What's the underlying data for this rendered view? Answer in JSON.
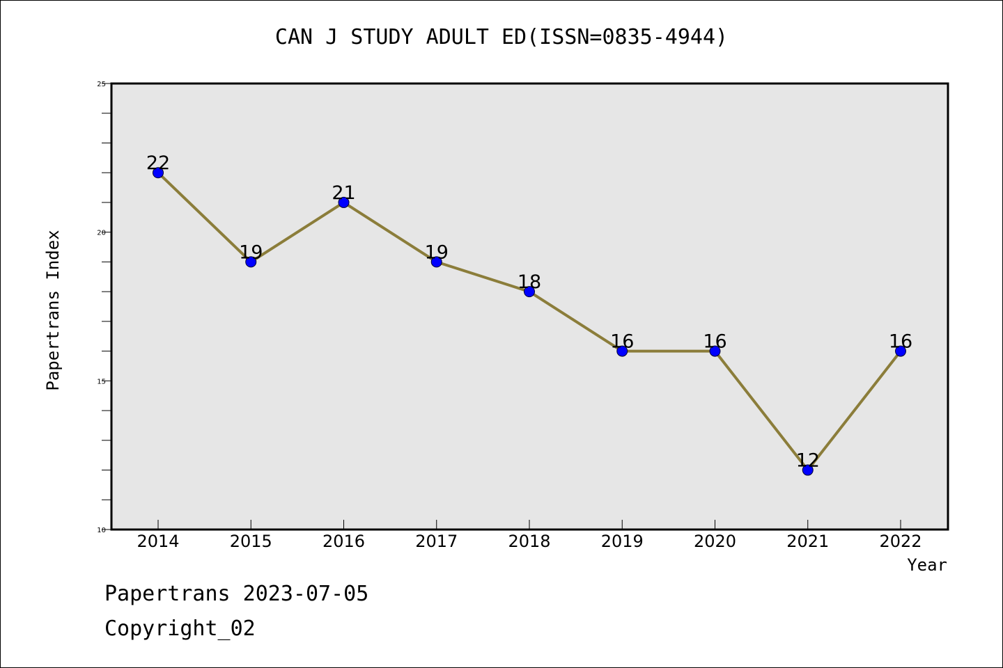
{
  "chart_data": {
    "type": "line",
    "title": "CAN J STUDY ADULT ED(ISSN=0835-4944)",
    "xlabel": "Year",
    "ylabel": "Papertrans Index",
    "categories": [
      "2014",
      "2015",
      "2016",
      "2017",
      "2018",
      "2019",
      "2020",
      "2021",
      "2022"
    ],
    "series": [
      {
        "values": [
          22,
          19,
          21,
          19,
          18,
          16,
          16,
          12,
          16
        ]
      }
    ],
    "data_labels": [
      "22",
      "19",
      "21",
      "19",
      "18",
      "16",
      "16",
      "12",
      "16"
    ],
    "ylim": [
      10,
      25
    ],
    "yticks": [
      "10",
      "15",
      "20",
      "25"
    ],
    "grid": false,
    "colors": {
      "line": "#8B7D3A",
      "marker": "#0000FF",
      "plot_background": "#E6E6E6"
    }
  },
  "footer": {
    "line1": "Papertrans 2023-07-05",
    "line2": "Copyright_02"
  }
}
